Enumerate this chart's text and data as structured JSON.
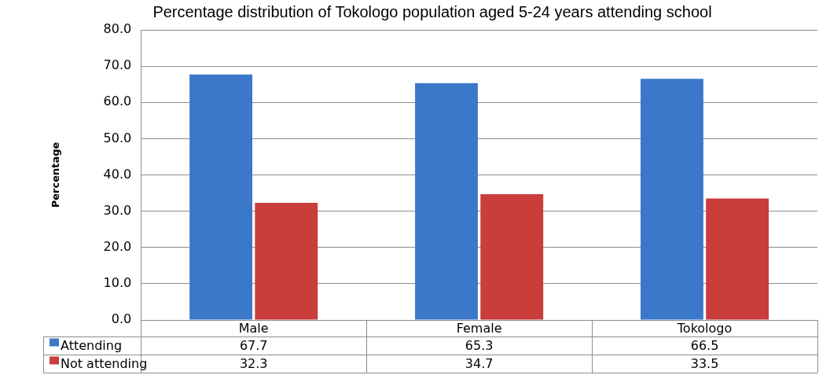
{
  "chart_data": {
    "type": "bar",
    "title": "Percentage distribution of Tokologo population aged 5-24 years attending school",
    "ylabel": "Percentage",
    "categories": [
      "Male",
      "Female",
      "Tokologo"
    ],
    "series": [
      {
        "name": "Attending",
        "color": "#3b78c9",
        "values": [
          67.7,
          65.3,
          66.5
        ]
      },
      {
        "name": "Not attending",
        "color": "#c93d3b",
        "values": [
          32.3,
          34.7,
          33.5
        ]
      }
    ],
    "ylim": [
      0,
      80
    ],
    "yticks": [
      {
        "value": 0,
        "label": "0.0"
      },
      {
        "value": 10,
        "label": "10.0"
      },
      {
        "value": 20,
        "label": "20.0"
      },
      {
        "value": 30,
        "label": "30.0"
      },
      {
        "value": 40,
        "label": "40.0"
      },
      {
        "value": 50,
        "label": "50.0"
      },
      {
        "value": 60,
        "label": "60.0"
      },
      {
        "value": 70,
        "label": "70.0"
      },
      {
        "value": 80,
        "label": "80.0"
      }
    ],
    "grid": "y",
    "legend": "bottom",
    "data_labels": true
  }
}
